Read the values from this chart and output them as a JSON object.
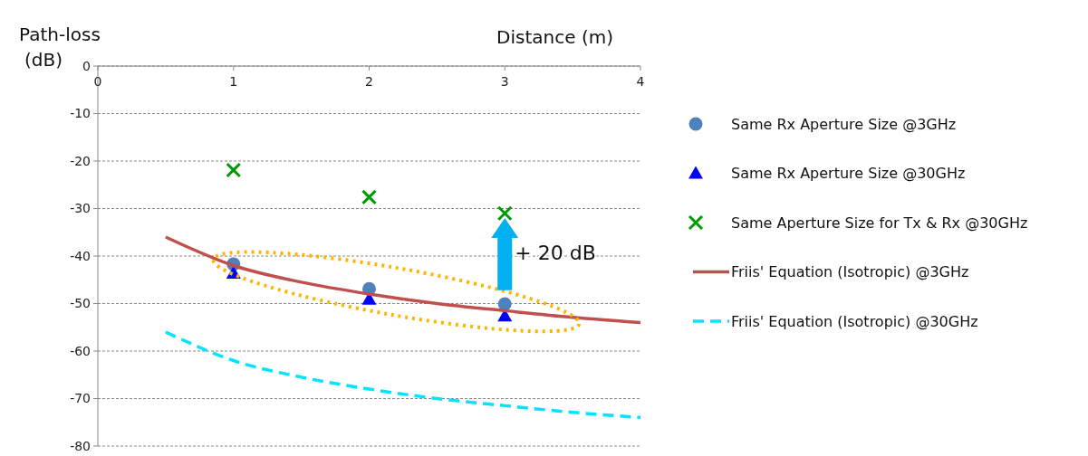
{
  "chart_data": {
    "type": "scatter",
    "xlabel": "Distance (m)",
    "ylabel": "Path-loss (dB)",
    "xlim": [
      0,
      4
    ],
    "xticks": [
      0,
      1,
      2,
      3,
      4
    ],
    "ylim": [
      -80,
      0
    ],
    "yticks": [
      -80,
      -70,
      -60,
      -50,
      -40,
      -30,
      -20,
      -10,
      0
    ],
    "grid": "y",
    "legend": "right",
    "series": [
      {
        "name": "Same Rx Aperture Size @3GHz",
        "marker": "circle",
        "color": "#4f81bd",
        "x": [
          1,
          2,
          3
        ],
        "values": [
          -41.7,
          -46.9,
          -50.1
        ]
      },
      {
        "name": "Same Rx Aperture Size @30GHz",
        "marker": "triangle",
        "color": "#0000ff",
        "x": [
          1,
          2,
          3
        ],
        "values": [
          -43.6,
          -49.1,
          -52.6
        ]
      },
      {
        "name": "Same Aperture Size for Tx & Rx @30GHz",
        "marker": "cross",
        "color": "#009900",
        "x": [
          1,
          2,
          3
        ],
        "values": [
          -21.9,
          -27.6,
          -31.0
        ]
      },
      {
        "name": "Friis' Equation (Isotropic) @3GHz",
        "type": "line",
        "line_style": "solid",
        "color": "#c0504d",
        "x": [
          0.5,
          1,
          1.5,
          2,
          2.5,
          3,
          3.5,
          4
        ],
        "values": [
          -36,
          -42,
          -45.5,
          -48,
          -50,
          -51.5,
          -52.9,
          -54
        ]
      },
      {
        "name": "Friis' Equation (Isotropic) @30GHz",
        "type": "line",
        "line_style": "dashed",
        "color": "#00e5ff",
        "x": [
          0.5,
          1,
          1.5,
          2,
          2.5,
          3,
          3.5,
          4
        ],
        "values": [
          -56,
          -62,
          -65.5,
          -68,
          -70,
          -71.5,
          -72.9,
          -74
        ]
      }
    ],
    "annotations": [
      "+ 20 dB"
    ]
  }
}
